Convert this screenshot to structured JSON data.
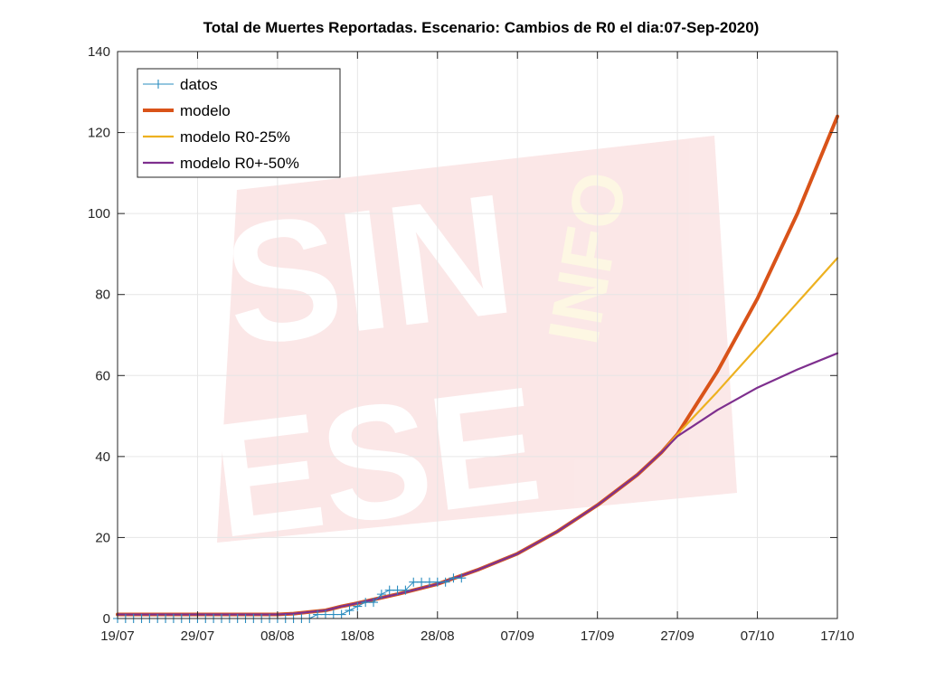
{
  "chart_data": {
    "type": "line",
    "title": "Total de Muertes Reportadas. Escenario: Cambios de R0 el dia:07-Sep-2020)",
    "xlabel": "",
    "ylabel": "",
    "xlim": [
      0,
      90
    ],
    "ylim": [
      0,
      140
    ],
    "grid": true,
    "legend_position": "top-left",
    "x_ticks": [
      {
        "x": 0,
        "label": "19/07"
      },
      {
        "x": 10,
        "label": "29/07"
      },
      {
        "x": 20,
        "label": "08/08"
      },
      {
        "x": 30,
        "label": "18/08"
      },
      {
        "x": 40,
        "label": "28/08"
      },
      {
        "x": 50,
        "label": "07/09"
      },
      {
        "x": 60,
        "label": "17/09"
      },
      {
        "x": 70,
        "label": "27/09"
      },
      {
        "x": 80,
        "label": "07/10"
      },
      {
        "x": 90,
        "label": "17/10"
      }
    ],
    "y_ticks": [
      0,
      20,
      40,
      60,
      80,
      100,
      120,
      140
    ],
    "series": [
      {
        "name": "datos",
        "color": "#2a8cbf",
        "marker": "+",
        "x": [
          0,
          1,
          2,
          3,
          4,
          5,
          6,
          7,
          8,
          9,
          10,
          11,
          12,
          13,
          14,
          15,
          16,
          17,
          18,
          19,
          20,
          21,
          22,
          23,
          24,
          25,
          26,
          27,
          28,
          29,
          30,
          31,
          32,
          33,
          34,
          35,
          36,
          37,
          38,
          39,
          40,
          41,
          42,
          43
        ],
        "y": [
          0,
          0,
          0,
          0,
          0,
          0,
          0,
          0,
          0,
          0,
          0,
          0,
          0,
          0,
          0,
          0,
          0,
          0,
          0,
          0,
          0,
          0,
          0,
          0,
          0,
          1,
          1,
          1,
          1,
          2,
          3,
          4,
          4,
          6,
          7,
          7,
          7,
          9,
          9,
          9,
          9,
          9,
          10,
          10
        ]
      },
      {
        "name": "modelo",
        "color": "#d95319",
        "x": [
          0,
          5,
          10,
          15,
          20,
          22,
          24,
          26,
          28,
          30,
          32,
          35,
          40,
          45,
          50,
          55,
          60,
          65,
          68,
          70,
          75,
          80,
          85,
          90
        ],
        "y": [
          1,
          1,
          1,
          1,
          1,
          1.2,
          1.6,
          2,
          3,
          3.8,
          4.7,
          6,
          8.5,
          12,
          16,
          21.5,
          28,
          35.5,
          41,
          45.5,
          61,
          79,
          100,
          124
        ]
      },
      {
        "name": "modelo R0-25%",
        "color": "#edb120",
        "x": [
          0,
          5,
          10,
          15,
          20,
          22,
          24,
          26,
          28,
          30,
          32,
          35,
          40,
          45,
          50,
          55,
          60,
          65,
          68,
          70,
          75,
          80,
          85,
          90
        ],
        "y": [
          1,
          1,
          1,
          1,
          1,
          1.2,
          1.6,
          2,
          3,
          3.8,
          4.7,
          6,
          8.5,
          12,
          16,
          21.5,
          28,
          35.5,
          41,
          45.5,
          56,
          67,
          78,
          89
        ]
      },
      {
        "name": "modelo R0+-50%",
        "color": "#7e2f8e",
        "x": [
          0,
          5,
          10,
          15,
          20,
          22,
          24,
          26,
          28,
          30,
          32,
          35,
          40,
          45,
          50,
          55,
          60,
          65,
          68,
          70,
          75,
          80,
          85,
          90
        ],
        "y": [
          1,
          1,
          1,
          1,
          1,
          1.2,
          1.6,
          2,
          3,
          3.8,
          4.7,
          6,
          8.5,
          12,
          16,
          21.5,
          28,
          35.5,
          41,
          45,
          51.5,
          57,
          61.5,
          65.5
        ]
      }
    ]
  },
  "watermark": {
    "line1": "SIN",
    "line2": "ESE",
    "side": "INFO"
  }
}
